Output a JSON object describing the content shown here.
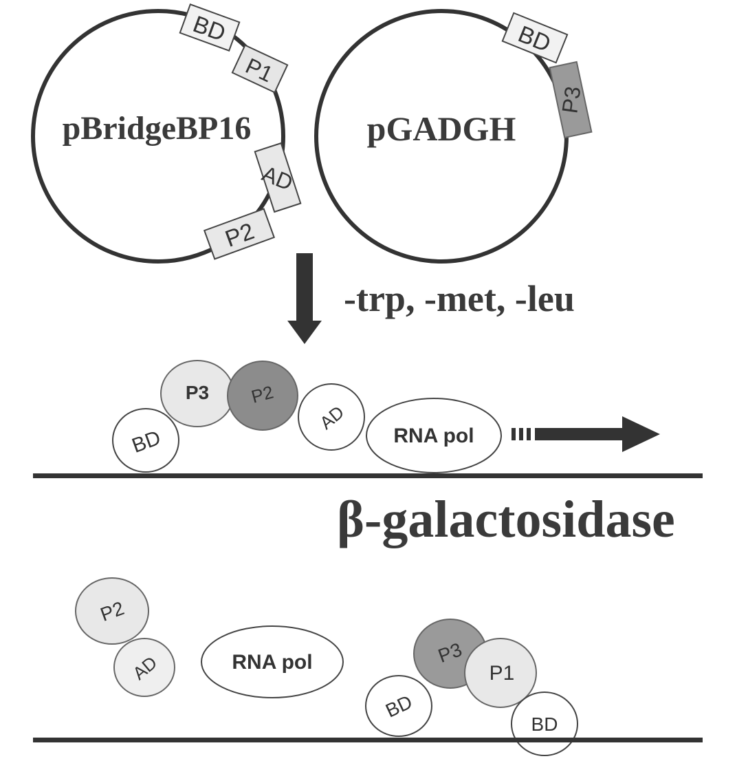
{
  "plasmids": {
    "left": {
      "name": "pBridgeBP16",
      "segments": [
        "BD",
        "P1",
        "AD",
        "P2"
      ]
    },
    "right": {
      "name": "pGADGH",
      "segments": [
        "BD",
        "P3"
      ]
    }
  },
  "condition": "-trp, -met, -leu",
  "reporter": "β-galactosidase",
  "complex_top": {
    "bd": "BD",
    "p3": "P3",
    "p2": "P2",
    "ad": "AD",
    "rna_pol": "RNA pol"
  },
  "bottom": {
    "p2": "P2",
    "ad": "AD",
    "rna_pol": "RNA pol",
    "p3": "P3",
    "p1": "P1",
    "bd1": "BD",
    "bd2": "BD"
  },
  "colors": {
    "light_fill": "#e8e8e8",
    "dark_fill": "#9a9a9a",
    "mid_fill": "#8c8c8c",
    "stroke": "#333333"
  }
}
